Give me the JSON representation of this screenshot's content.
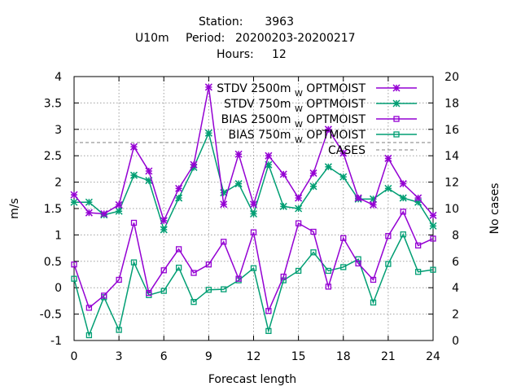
{
  "header": {
    "station_label": "Station:",
    "station_value": "3963",
    "param": "U10m",
    "period_label": "Period:",
    "period_value": "20200203-20200217",
    "hours_label": "Hours:",
    "hours_value": "12"
  },
  "chart_data": {
    "type": "line",
    "xlabel": "Forecast length",
    "ylabel": "m/s",
    "y2label": "No cases",
    "xlim": [
      0,
      24
    ],
    "ylim": [
      -1,
      4
    ],
    "y2lim": [
      0,
      20
    ],
    "xticks": [
      0,
      3,
      6,
      9,
      12,
      15,
      18,
      21,
      24
    ],
    "yticks": [
      -1,
      -0.5,
      0,
      0.5,
      1,
      1.5,
      2,
      2.5,
      3,
      3.5,
      4
    ],
    "y2ticks": [
      0,
      2,
      4,
      6,
      8,
      10,
      12,
      14,
      16,
      18,
      20
    ],
    "grid": true,
    "legend_position": "top-right",
    "x": [
      0,
      1,
      2,
      3,
      4,
      5,
      6,
      7,
      8,
      9,
      10,
      11,
      12,
      13,
      14,
      15,
      16,
      17,
      18,
      19,
      20,
      21,
      22,
      23,
      24
    ],
    "series": [
      {
        "name": "STDV 2500m",
        "name_sub": "W",
        "name_suffix": "OPTMOIST",
        "color": "#9400d3",
        "marker": "x-star",
        "values": [
          1.76,
          1.42,
          1.4,
          1.57,
          2.67,
          2.21,
          1.27,
          1.88,
          2.33,
          3.8,
          1.58,
          2.53,
          1.58,
          2.5,
          2.15,
          1.7,
          2.17,
          3.0,
          2.55,
          1.7,
          1.57,
          2.45,
          1.97,
          1.7,
          1.37
        ]
      },
      {
        "name": "STDV 750m",
        "name_sub": "W",
        "name_suffix": "OPTMOIST",
        "color": "#009e73",
        "marker": "x-star",
        "values": [
          1.62,
          1.62,
          1.38,
          1.45,
          2.13,
          2.03,
          1.1,
          1.7,
          2.28,
          2.93,
          1.8,
          1.97,
          1.4,
          2.33,
          1.54,
          1.5,
          1.92,
          2.29,
          2.1,
          1.68,
          1.68,
          1.88,
          1.7,
          1.62,
          1.17
        ]
      },
      {
        "name": "BIAS 2500m",
        "name_sub": "W",
        "name_suffix": "OPTMOIST",
        "color": "#9400d3",
        "marker": "square",
        "values": [
          0.44,
          -0.38,
          -0.15,
          0.15,
          1.23,
          -0.1,
          0.33,
          0.73,
          0.28,
          0.44,
          0.87,
          0.17,
          1.05,
          -0.44,
          0.21,
          1.22,
          1.06,
          0.02,
          0.94,
          0.46,
          0.15,
          0.98,
          1.44,
          0.8,
          0.93
        ]
      },
      {
        "name": "BIAS 750m",
        "name_sub": "W",
        "name_suffix": "OPTMOIST",
        "color": "#009e73",
        "marker": "square",
        "values": [
          0.17,
          -0.9,
          -0.18,
          -0.8,
          0.48,
          -0.14,
          -0.06,
          0.38,
          -0.27,
          -0.04,
          -0.03,
          0.14,
          0.37,
          -0.82,
          0.14,
          0.32,
          0.67,
          0.32,
          0.39,
          0.54,
          -0.28,
          0.45,
          1.01,
          0.3,
          0.34
        ]
      }
    ],
    "cases": {
      "name": "CASES",
      "color": "#999999",
      "axis": "y2",
      "value": 15
    }
  }
}
